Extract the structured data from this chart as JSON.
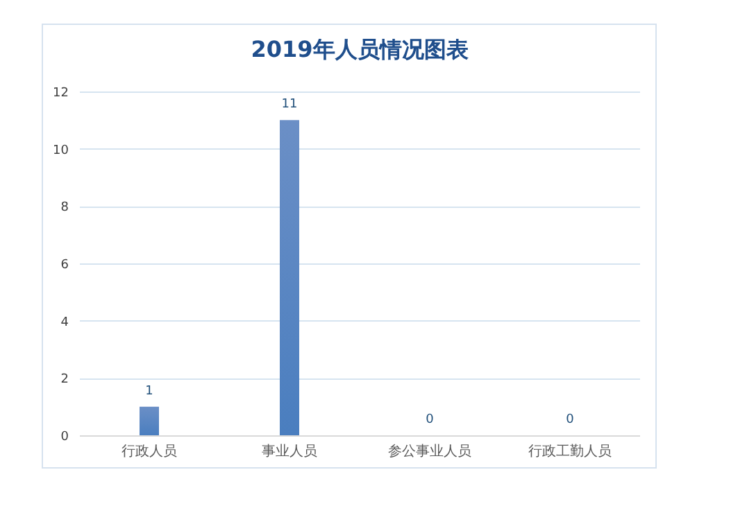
{
  "chart_data": {
    "type": "bar",
    "title": "2019年人员情况图表",
    "categories": [
      "行政人员",
      "事业人员",
      "参公事业人员",
      "行政工勤人员"
    ],
    "values": [
      1,
      11,
      0,
      0
    ],
    "color": "#4a7ebf",
    "ylim": [
      0,
      12
    ],
    "yticks": [
      0,
      2,
      4,
      6,
      8,
      10,
      12
    ],
    "grid": "y",
    "data_labels": true
  }
}
